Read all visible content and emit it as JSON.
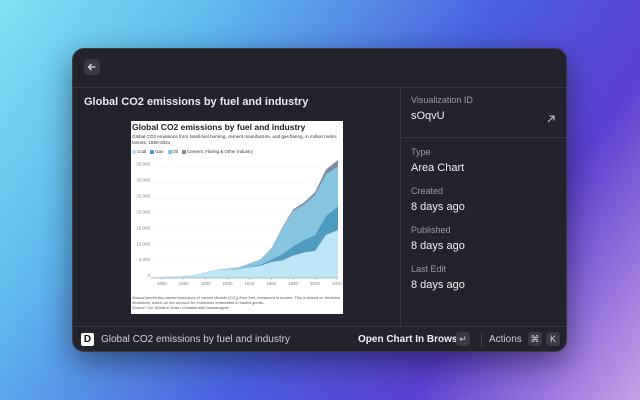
{
  "detail": {
    "title": "Global CO2 emissions by fuel and industry",
    "preview": {
      "chart_data": {
        "type": "area",
        "title": "Global CO2 emissions by fuel and industry",
        "subtitle": "Global CO2 emissions from fossil-fuel burning, cement manufacture, and gas flaring, in million metric tonnes, 1850-2021",
        "x": [
          1850,
          1870,
          1890,
          1910,
          1930,
          1950,
          1960,
          1970,
          1980,
          1990,
          2000,
          2010,
          2021
        ],
        "series": [
          {
            "name": "Coal",
            "color": "#bfe6f6",
            "values": [
              200,
              500,
              1000,
              2500,
              2800,
              3800,
              5000,
              5500,
              7000,
              8000,
              8500,
              13500,
              15000
            ]
          },
          {
            "name": "Gas",
            "color": "#4f9cc0",
            "values": [
              0,
              0,
              5,
              30,
              100,
              350,
              800,
              2000,
              3000,
              4000,
              5000,
              6000,
              7500
            ]
          },
          {
            "name": "Oil",
            "color": "#86c5df",
            "values": [
              0,
              0,
              20,
              100,
              400,
              1500,
              3300,
              8000,
              11000,
              11000,
              12500,
              13000,
              12500
            ]
          },
          {
            "name": "Cement, Flaring & Other Industry",
            "color": "#7d8a9f",
            "values": [
              0,
              0,
              0,
              10,
              30,
              100,
              150,
              300,
              500,
              700,
              900,
              1500,
              2000
            ]
          }
        ],
        "xlim": [
          1850,
          2021
        ],
        "ylim": [
          0,
          37000
        ],
        "xticks": [
          1860,
          1880,
          1900,
          1920,
          1940,
          1960,
          1980,
          2000,
          2020
        ],
        "yticks": [
          0,
          {
            "value": 5000,
            "label": "5,000"
          },
          {
            "value": 10000,
            "label": "10,000"
          },
          {
            "value": 15000,
            "label": "15,000"
          },
          {
            "value": 20000,
            "label": "20,000"
          },
          {
            "value": 25000,
            "label": "25,000"
          },
          {
            "value": 30000,
            "label": "30,000"
          },
          {
            "value": 35000,
            "label": "35,000"
          }
        ],
        "grid": true,
        "note": "Annual production-based emissions of carbon dioxide (CO₂) from fuel, measured in tonnes. This is based on territorial emissions, which do not account for emissions embedded in traded goods.",
        "source": "Source: Our World in Data • Created with Datawrapper"
      }
    },
    "metadata": [
      {
        "label": "Visualization ID",
        "value": "sOqvU"
      },
      {
        "label": "Type",
        "value": "Area Chart"
      },
      {
        "label": "Created",
        "value": "8 days ago"
      },
      {
        "label": "Published",
        "value": "8 days ago"
      },
      {
        "label": "Last Edit",
        "value": "8 days ago"
      }
    ]
  },
  "footer": {
    "icon": "D",
    "title": "Global CO2 emissions by fuel and industry",
    "primary_action": "Open Chart In Browser",
    "primary_key": "↵",
    "actions_label": "Actions",
    "shortcut": [
      "⌘",
      "K"
    ]
  }
}
